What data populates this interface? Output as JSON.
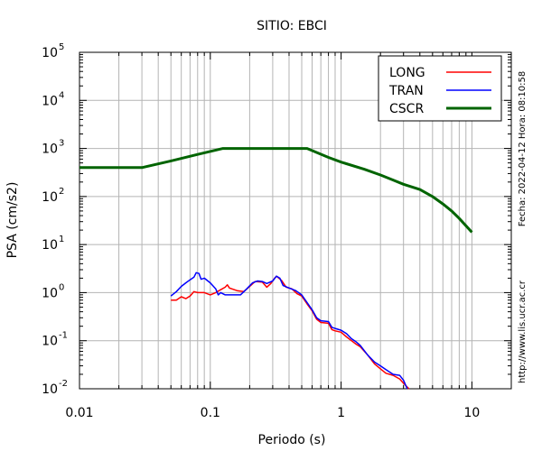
{
  "chart_data": {
    "type": "line",
    "title": "SITIO: EBCI",
    "xlabel": "Periodo (s)",
    "ylabel": "PSA (cm/s2)",
    "xscale": "log",
    "yscale": "log",
    "xlim": [
      0.01,
      20
    ],
    "ylim": [
      0.01,
      100000
    ],
    "grid": true,
    "legend_position": "top-right",
    "x_ticks": [
      {
        "value": 0.01,
        "label": "0.01"
      },
      {
        "value": 0.1,
        "label": "0.1"
      },
      {
        "value": 1,
        "label": "1"
      },
      {
        "value": 10,
        "label": "10"
      }
    ],
    "y_ticks": [
      {
        "value": 0.01,
        "mantissa": "10",
        "exp": "-2"
      },
      {
        "value": 0.1,
        "mantissa": "10",
        "exp": "-1"
      },
      {
        "value": 1,
        "mantissa": "10",
        "exp": "0"
      },
      {
        "value": 10,
        "mantissa": "10",
        "exp": "1"
      },
      {
        "value": 100,
        "mantissa": "10",
        "exp": "2"
      },
      {
        "value": 1000,
        "mantissa": "10",
        "exp": "3"
      },
      {
        "value": 10000,
        "mantissa": "10",
        "exp": "4"
      },
      {
        "value": 100000,
        "mantissa": "10",
        "exp": "5"
      }
    ],
    "series": [
      {
        "name": "LONG",
        "color": "#ff0000",
        "points": [
          [
            0.05,
            0.7
          ],
          [
            0.055,
            0.7
          ],
          [
            0.06,
            0.82
          ],
          [
            0.065,
            0.75
          ],
          [
            0.07,
            0.85
          ],
          [
            0.075,
            1.05
          ],
          [
            0.08,
            1.0
          ],
          [
            0.09,
            1.0
          ],
          [
            0.1,
            0.9
          ],
          [
            0.11,
            1.0
          ],
          [
            0.12,
            1.15
          ],
          [
            0.13,
            1.3
          ],
          [
            0.135,
            1.45
          ],
          [
            0.14,
            1.25
          ],
          [
            0.16,
            1.1
          ],
          [
            0.18,
            1.05
          ],
          [
            0.2,
            1.35
          ],
          [
            0.22,
            1.7
          ],
          [
            0.25,
            1.65
          ],
          [
            0.27,
            1.3
          ],
          [
            0.29,
            1.55
          ],
          [
            0.31,
            2.0
          ],
          [
            0.32,
            2.2
          ],
          [
            0.35,
            1.8
          ],
          [
            0.38,
            1.3
          ],
          [
            0.42,
            1.2
          ],
          [
            0.46,
            0.95
          ],
          [
            0.5,
            0.85
          ],
          [
            0.55,
            0.58
          ],
          [
            0.6,
            0.42
          ],
          [
            0.65,
            0.28
          ],
          [
            0.7,
            0.24
          ],
          [
            0.8,
            0.23
          ],
          [
            0.85,
            0.17
          ],
          [
            0.9,
            0.16
          ],
          [
            1.0,
            0.15
          ],
          [
            1.1,
            0.12
          ],
          [
            1.2,
            0.1
          ],
          [
            1.3,
            0.085
          ],
          [
            1.4,
            0.075
          ],
          [
            1.6,
            0.05
          ],
          [
            1.8,
            0.033
          ],
          [
            2.0,
            0.026
          ],
          [
            2.2,
            0.021
          ],
          [
            2.5,
            0.019
          ],
          [
            2.8,
            0.016
          ],
          [
            3.0,
            0.013
          ],
          [
            3.3,
            0.01
          ]
        ]
      },
      {
        "name": "TRAN",
        "color": "#0000ff",
        "points": [
          [
            0.05,
            0.85
          ],
          [
            0.055,
            1.05
          ],
          [
            0.06,
            1.35
          ],
          [
            0.065,
            1.6
          ],
          [
            0.07,
            1.85
          ],
          [
            0.075,
            2.1
          ],
          [
            0.078,
            2.6
          ],
          [
            0.082,
            2.5
          ],
          [
            0.085,
            1.9
          ],
          [
            0.09,
            2.0
          ],
          [
            0.1,
            1.6
          ],
          [
            0.11,
            1.2
          ],
          [
            0.115,
            0.9
          ],
          [
            0.12,
            1.0
          ],
          [
            0.13,
            0.9
          ],
          [
            0.15,
            0.9
          ],
          [
            0.17,
            0.9
          ],
          [
            0.19,
            1.2
          ],
          [
            0.21,
            1.6
          ],
          [
            0.23,
            1.75
          ],
          [
            0.25,
            1.7
          ],
          [
            0.27,
            1.55
          ],
          [
            0.3,
            1.75
          ],
          [
            0.32,
            2.2
          ],
          [
            0.34,
            2.0
          ],
          [
            0.36,
            1.4
          ],
          [
            0.4,
            1.25
          ],
          [
            0.45,
            1.1
          ],
          [
            0.5,
            0.9
          ],
          [
            0.55,
            0.62
          ],
          [
            0.6,
            0.44
          ],
          [
            0.65,
            0.3
          ],
          [
            0.7,
            0.26
          ],
          [
            0.8,
            0.25
          ],
          [
            0.85,
            0.19
          ],
          [
            0.9,
            0.18
          ],
          [
            1.0,
            0.165
          ],
          [
            1.1,
            0.14
          ],
          [
            1.2,
            0.11
          ],
          [
            1.3,
            0.095
          ],
          [
            1.4,
            0.08
          ],
          [
            1.6,
            0.05
          ],
          [
            1.8,
            0.036
          ],
          [
            2.0,
            0.03
          ],
          [
            2.2,
            0.025
          ],
          [
            2.5,
            0.02
          ],
          [
            2.8,
            0.019
          ],
          [
            3.0,
            0.015
          ],
          [
            3.2,
            0.01
          ]
        ]
      },
      {
        "name": "CSCR",
        "color": "#006400",
        "points": [
          [
            0.01,
            400
          ],
          [
            0.03,
            400
          ],
          [
            0.05,
            550
          ],
          [
            0.08,
            750
          ],
          [
            0.125,
            1000
          ],
          [
            0.55,
            1000
          ],
          [
            0.8,
            650
          ],
          [
            1.0,
            520
          ],
          [
            1.5,
            370
          ],
          [
            2.0,
            280
          ],
          [
            2.5,
            220
          ],
          [
            3.0,
            180
          ],
          [
            4.0,
            140
          ],
          [
            5.0,
            100
          ],
          [
            6.0,
            70
          ],
          [
            7.0,
            50
          ],
          [
            8.0,
            35
          ],
          [
            10.0,
            18
          ]
        ]
      }
    ],
    "annotations": [
      "Fecha: 2022-04-12  Hora: 08:10:58",
      "http://www.lis.ucr.ac.cr"
    ]
  }
}
